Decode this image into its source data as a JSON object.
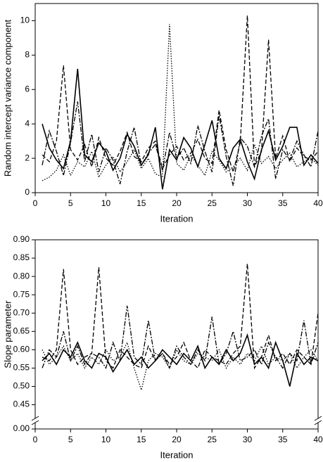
{
  "chart_data": [
    {
      "type": "line",
      "xlabel": "Iteration",
      "ylabel": "Random intercept variance component",
      "x": [
        1,
        2,
        3,
        4,
        5,
        6,
        7,
        8,
        9,
        10,
        11,
        12,
        13,
        14,
        15,
        16,
        17,
        18,
        19,
        20,
        21,
        22,
        23,
        24,
        25,
        26,
        27,
        28,
        29,
        30,
        31,
        32,
        33,
        34,
        35,
        36,
        37,
        38,
        39,
        40
      ],
      "xlim": [
        0,
        40
      ],
      "xticks": [
        0,
        5,
        10,
        15,
        20,
        25,
        30,
        35,
        40
      ],
      "ylim": [
        0,
        11
      ],
      "yticks": [
        0,
        2,
        4,
        6,
        8,
        10
      ],
      "series": [
        {
          "color": "#000000",
          "dash": "6,3",
          "values": [
            2.2,
            1.8,
            3.0,
            7.4,
            2.5,
            1.9,
            2.8,
            1.5,
            3.2,
            2.0,
            1.6,
            2.4,
            3.5,
            2.1,
            1.8,
            2.6,
            3.0,
            1.4,
            2.2,
            2.7,
            1.9,
            2.3,
            3.1,
            2.0,
            1.7,
            4.8,
            2.5,
            1.2,
            2.9,
            10.3,
            1.5,
            2.4,
            8.9,
            2.0,
            3.3,
            1.8,
            2.6,
            2.1,
            1.9,
            2.4
          ]
        },
        {
          "color": "#000000",
          "dash": "none",
          "values": [
            4.0,
            2.6,
            1.9,
            1.4,
            3.0,
            7.2,
            2.2,
            1.8,
            2.9,
            2.4,
            1.3,
            2.0,
            3.4,
            2.7,
            1.6,
            2.2,
            3.8,
            0.2,
            2.5,
            1.9,
            3.2,
            2.6,
            1.5,
            2.8,
            4.2,
            2.0,
            1.4,
            2.6,
            3.1,
            1.8,
            0.8,
            2.5,
            3.6,
            1.9,
            2.7,
            3.8,
            3.8,
            1.6,
            2.2,
            1.7
          ]
        },
        {
          "color": "#000000",
          "dash": "1.5,2",
          "values": [
            0.7,
            0.9,
            1.3,
            2.2,
            1.0,
            1.8,
            1.5,
            2.4,
            0.9,
            1.6,
            2.1,
            1.2,
            1.8,
            2.5,
            1.4,
            2.0,
            1.1,
            0.9,
            9.8,
            1.7,
            1.3,
            2.2,
            1.6,
            1.0,
            2.4,
            1.9,
            1.2,
            1.5,
            2.0,
            1.3,
            2.8,
            1.7,
            2.1,
            1.4,
            1.9,
            2.3,
            1.5,
            1.8,
            2.0,
            1.6
          ]
        },
        {
          "color": "#000000",
          "dash": "7,2,2,2",
          "values": [
            1.6,
            3.6,
            2.4,
            1.0,
            2.9,
            5.3,
            1.8,
            3.4,
            1.2,
            2.6,
            1.9,
            0.5,
            2.4,
            3.8,
            1.6,
            2.3,
            2.8,
            1.3,
            3.5,
            2.0,
            2.6,
            1.7,
            3.9,
            2.4,
            1.2,
            4.5,
            2.1,
            0.4,
            3.2,
            2.7,
            1.5,
            3.3,
            4.3,
            0.8,
            2.5,
            1.9,
            3.0,
            2.2,
            1.5,
            3.6
          ]
        }
      ]
    },
    {
      "type": "line",
      "xlabel": "Iteration",
      "ylabel": "Slope parameter",
      "x": [
        1,
        2,
        3,
        4,
        5,
        6,
        7,
        8,
        9,
        10,
        11,
        12,
        13,
        14,
        15,
        16,
        17,
        18,
        19,
        20,
        21,
        22,
        23,
        24,
        25,
        26,
        27,
        28,
        29,
        30,
        31,
        32,
        33,
        34,
        35,
        36,
        37,
        38,
        39,
        40
      ],
      "xlim": [
        0,
        40
      ],
      "xticks": [
        0,
        5,
        10,
        15,
        20,
        25,
        30,
        35,
        40
      ],
      "ylim": [
        0,
        0.9
      ],
      "ybreak": [
        0,
        0.43
      ],
      "yticks": [
        {
          "value": 0,
          "label": "0.00"
        },
        0.45,
        {
          "value": 0.5,
          "label": "0.50"
        },
        0.55,
        {
          "value": 0.6,
          "label": "0.60"
        },
        0.65,
        {
          "value": 0.7,
          "label": "0.70"
        },
        0.75,
        {
          "value": 0.8,
          "label": "0.80"
        },
        0.85,
        {
          "value": 0.9,
          "label": "0.90"
        }
      ],
      "series": [
        {
          "color": "#000000",
          "dash": "6,3",
          "values": [
            0.58,
            0.57,
            0.6,
            0.82,
            0.6,
            0.56,
            0.58,
            0.59,
            0.825,
            0.57,
            0.55,
            0.6,
            0.58,
            0.56,
            0.55,
            0.61,
            0.57,
            0.59,
            0.56,
            0.58,
            0.62,
            0.57,
            0.55,
            0.6,
            0.58,
            0.57,
            0.56,
            0.59,
            0.61,
            0.835,
            0.55,
            0.58,
            0.64,
            0.57,
            0.59,
            0.56,
            0.6,
            0.58,
            0.56,
            0.7
          ]
        },
        {
          "color": "#000000",
          "dash": "none",
          "values": [
            0.57,
            0.59,
            0.56,
            0.6,
            0.58,
            0.62,
            0.57,
            0.55,
            0.59,
            0.58,
            0.54,
            0.57,
            0.6,
            0.56,
            0.58,
            0.55,
            0.57,
            0.6,
            0.58,
            0.56,
            0.59,
            0.57,
            0.61,
            0.55,
            0.58,
            0.56,
            0.6,
            0.57,
            0.59,
            0.64,
            0.56,
            0.58,
            0.55,
            0.62,
            0.57,
            0.5,
            0.59,
            0.56,
            0.58,
            0.57
          ]
        },
        {
          "color": "#000000",
          "dash": "1.5,2",
          "values": [
            0.6,
            0.56,
            0.58,
            0.61,
            0.57,
            0.59,
            0.55,
            0.58,
            0.56,
            0.6,
            0.57,
            0.58,
            0.62,
            0.55,
            0.49,
            0.57,
            0.59,
            0.58,
            0.55,
            0.6,
            0.57,
            0.56,
            0.59,
            0.58,
            0.57,
            0.6,
            0.55,
            0.58,
            0.56,
            0.59,
            0.57,
            0.61,
            0.56,
            0.58,
            0.57,
            0.59,
            0.55,
            0.58,
            0.6,
            0.57
          ]
        },
        {
          "color": "#000000",
          "dash": "7,2,2,2",
          "values": [
            0.55,
            0.6,
            0.58,
            0.65,
            0.57,
            0.61,
            0.56,
            0.59,
            0.58,
            0.55,
            0.62,
            0.57,
            0.72,
            0.58,
            0.56,
            0.68,
            0.57,
            0.59,
            0.55,
            0.61,
            0.58,
            0.56,
            0.6,
            0.57,
            0.69,
            0.56,
            0.59,
            0.65,
            0.57,
            0.58,
            0.6,
            0.56,
            0.62,
            0.58,
            0.55,
            0.59,
            0.57,
            0.68,
            0.56,
            0.62
          ]
        }
      ]
    }
  ]
}
